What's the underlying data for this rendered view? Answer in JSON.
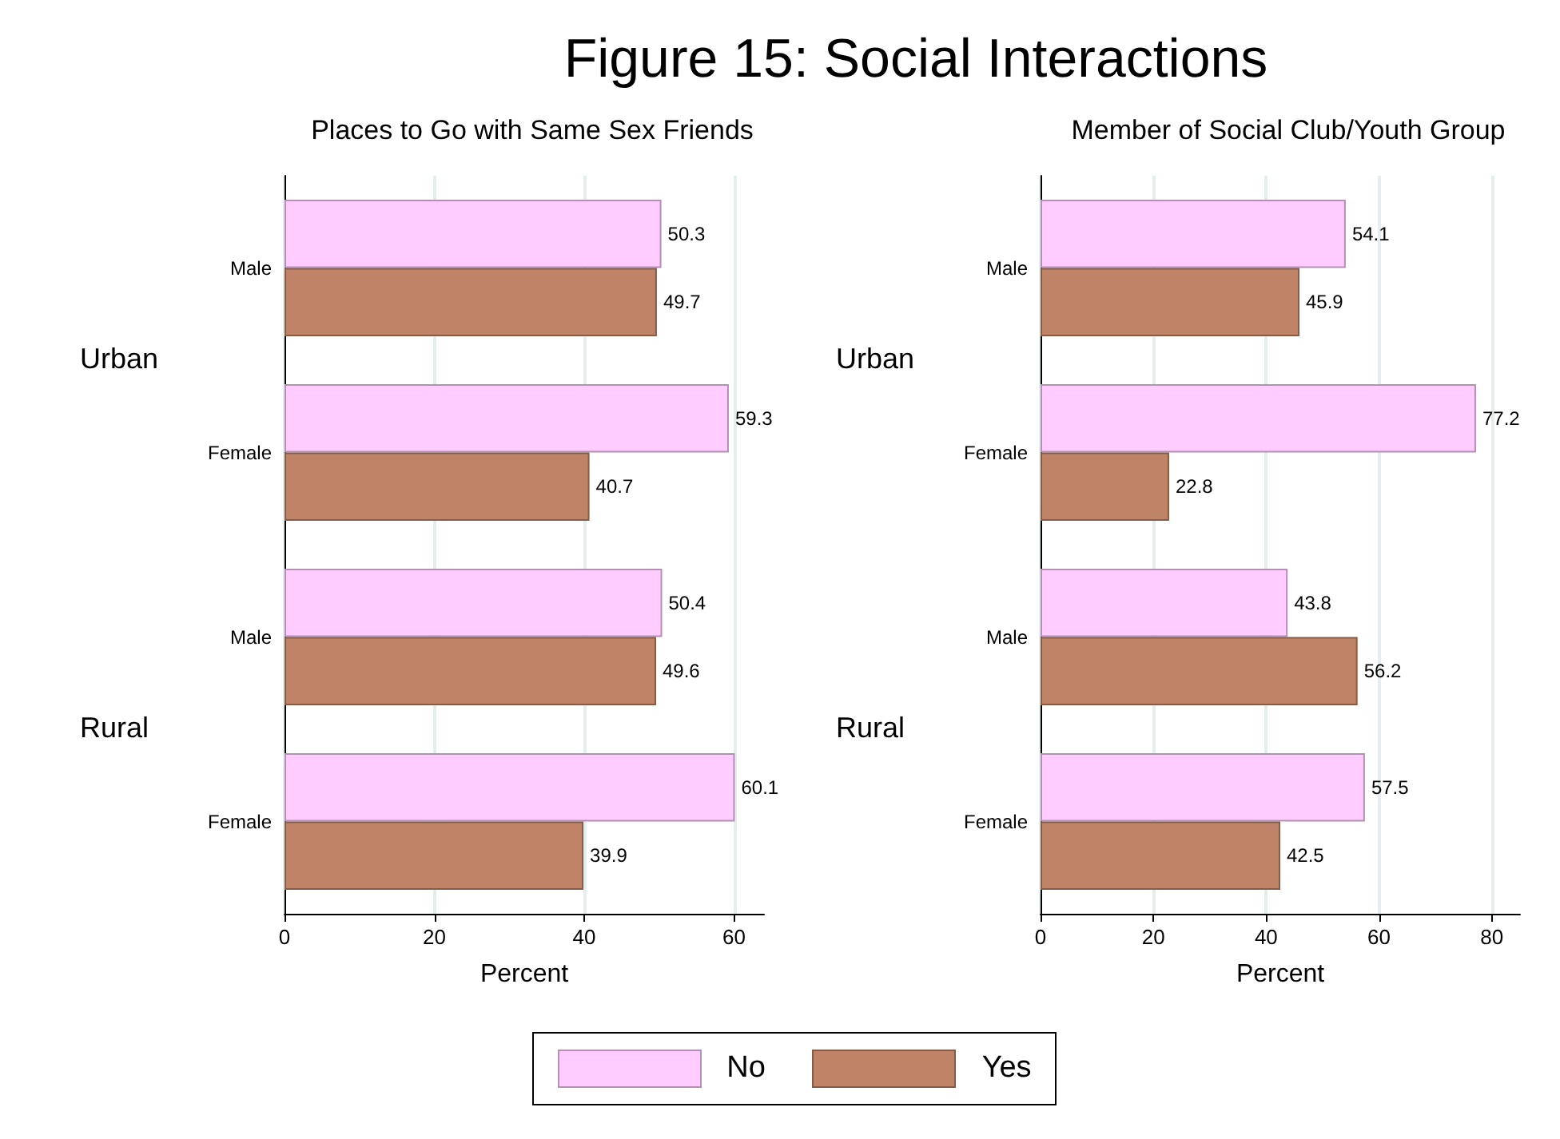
{
  "chart_data": [
    {
      "type": "bar",
      "orientation": "horizontal",
      "title": "Figure 15: Social Interactions",
      "subtitle": "Places to Go with Same Sex Friends",
      "xlabel": "Percent",
      "categories": [
        "Male",
        "Female",
        "Male",
        "Female"
      ],
      "annotations": [
        "Urban",
        "Rural"
      ],
      "series": [
        {
          "name": "No",
          "color": "#ffccff",
          "values": [
            50.3,
            59.3,
            50.4,
            60.1
          ]
        },
        {
          "name": "Yes",
          "color": "#bf8468",
          "values": [
            49.7,
            40.7,
            49.6,
            39.9
          ]
        }
      ],
      "xlim": [
        0,
        64
      ],
      "xticks": [
        0,
        20,
        40,
        60
      ],
      "grid": "x",
      "data_labels": true,
      "legend": "bottom"
    },
    {
      "type": "bar",
      "orientation": "horizontal",
      "subtitle": "Member of Social Club/Youth Group",
      "xlabel": "Percent",
      "categories": [
        "Male",
        "Female",
        "Male",
        "Female"
      ],
      "annotations": [
        "Urban",
        "Rural"
      ],
      "series": [
        {
          "color": "#ffccff",
          "values": [
            54.1,
            77.2,
            43.8,
            57.5
          ]
        },
        {
          "color": "#bf8468",
          "values": [
            45.9,
            22.8,
            56.2,
            42.5
          ]
        }
      ],
      "xlim": [
        0,
        85
      ],
      "xticks": [
        0,
        20,
        40,
        60,
        80
      ],
      "grid": "x",
      "data_labels": true
    }
  ]
}
